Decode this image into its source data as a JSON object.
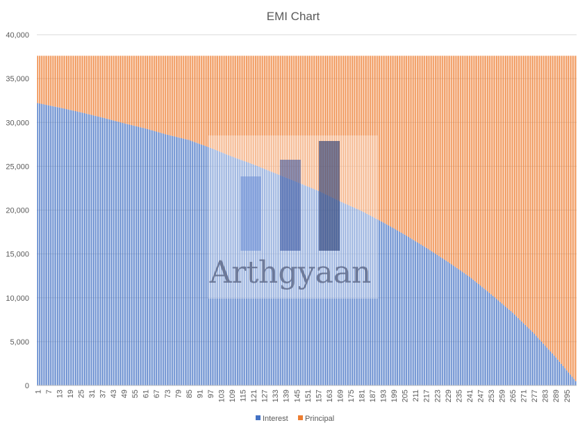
{
  "chart_data": {
    "type": "bar",
    "stacked": true,
    "title": "EMI Chart",
    "xlabel": "",
    "ylabel": "",
    "ylim": [
      0,
      40000
    ],
    "yticks": [
      0,
      5000,
      10000,
      15000,
      20000,
      25000,
      30000,
      35000,
      40000
    ],
    "ytick_labels": [
      "0",
      "5,000",
      "10,000",
      "15,000",
      "20,000",
      "25,000",
      "30,000",
      "35,000",
      "40,000"
    ],
    "months": 300,
    "x_first_tick": 1,
    "x_tick_step": 6,
    "emi_total": 37600,
    "series": [
      {
        "name": "Interest",
        "color": "#4472c4",
        "sampled_values": [
          {
            "x": 1,
            "y": 32200
          },
          {
            "x": 13,
            "y": 31700
          },
          {
            "x": 25,
            "y": 31150
          },
          {
            "x": 37,
            "y": 30550
          },
          {
            "x": 49,
            "y": 29900
          },
          {
            "x": 61,
            "y": 29300
          },
          {
            "x": 73,
            "y": 28600
          },
          {
            "x": 85,
            "y": 28000
          },
          {
            "x": 97,
            "y": 27100
          },
          {
            "x": 109,
            "y": 26100
          },
          {
            "x": 121,
            "y": 25200
          },
          {
            "x": 133,
            "y": 24200
          },
          {
            "x": 145,
            "y": 23200
          },
          {
            "x": 157,
            "y": 22200
          },
          {
            "x": 169,
            "y": 21000
          },
          {
            "x": 181,
            "y": 19900
          },
          {
            "x": 193,
            "y": 18600
          },
          {
            "x": 205,
            "y": 17200
          },
          {
            "x": 217,
            "y": 15700
          },
          {
            "x": 229,
            "y": 14100
          },
          {
            "x": 241,
            "y": 12400
          },
          {
            "x": 253,
            "y": 10400
          },
          {
            "x": 265,
            "y": 8300
          },
          {
            "x": 277,
            "y": 5900
          },
          {
            "x": 289,
            "y": 3200
          },
          {
            "x": 300,
            "y": 500
          }
        ]
      },
      {
        "name": "Principal",
        "color": "#ed7d31",
        "note_values": "EMI total minus interest for each month"
      }
    ],
    "legend_position": "bottom",
    "gridlines": true
  },
  "watermark": {
    "text": "Arthgyaan"
  }
}
